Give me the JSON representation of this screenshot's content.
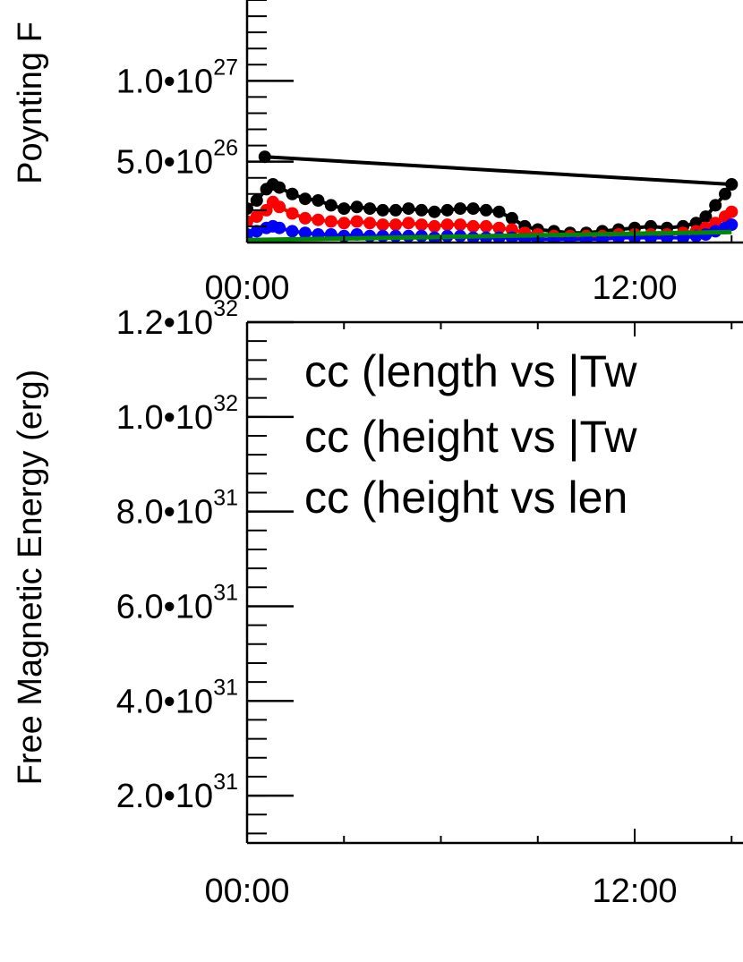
{
  "chart_data": [
    {
      "type": "scatter",
      "ylabel": "Poynting F",
      "x_tick_labels": [
        "00:00",
        "12:00"
      ],
      "y_ticks": [
        {
          "value": 5e+26,
          "mantissa": "5.0",
          "sep": "•",
          "base": "10",
          "exp": "26"
        },
        {
          "value": 1e+27,
          "mantissa": "1.0",
          "sep": "•",
          "base": "10",
          "exp": "27"
        }
      ],
      "xlim_hours": [
        0,
        24
      ],
      "ylim": [
        0,
        1.5e+27
      ],
      "series": [
        {
          "color": "#000000",
          "marker": "circle",
          "points": [
            [
              0.0,
              2.1e+26
            ],
            [
              0.3,
              2.6e+26
            ],
            [
              0.6,
              3.3e+26
            ],
            [
              0.8,
              3.6e+26
            ],
            [
              1.0,
              3.4e+26
            ],
            [
              1.4,
              3e+26
            ],
            [
              1.8,
              2.7e+26
            ],
            [
              2.2,
              2.6e+26
            ],
            [
              2.6,
              2.3e+26
            ],
            [
              3.0,
              2.1e+26
            ],
            [
              3.4,
              2.2e+26
            ],
            [
              3.8,
              2.1e+26
            ],
            [
              4.2,
              2e+26
            ],
            [
              4.6,
              2e+26
            ],
            [
              5.0,
              2.1e+26
            ],
            [
              5.4,
              2e+26
            ],
            [
              5.8,
              1.9e+26
            ],
            [
              6.2,
              2e+26
            ],
            [
              6.6,
              2.1e+26
            ],
            [
              7.0,
              2.1e+26
            ],
            [
              7.4,
              2e+26
            ],
            [
              7.8,
              1.9e+26
            ],
            [
              8.2,
              1.5e+26
            ],
            [
              8.6,
              1e+26
            ],
            [
              9.0,
              8e+25
            ],
            [
              9.5,
              7e+25
            ],
            [
              10.0,
              6e+25
            ],
            [
              10.5,
              6e+25
            ],
            [
              11.0,
              7e+25
            ],
            [
              11.5,
              8e+25
            ],
            [
              12.0,
              9e+25
            ],
            [
              12.5,
              1e+26
            ],
            [
              13.0,
              9e+25
            ],
            [
              13.5,
              1e+26
            ],
            [
              13.9,
              1.2e+26
            ],
            [
              14.2,
              1.6e+26
            ],
            [
              14.5,
              2.3e+26
            ],
            [
              14.8,
              3e+26
            ],
            [
              15.0,
              3.6e+26
            ],
            [
              0.55,
              5.3e+26
            ]
          ]
        },
        {
          "color": "#ff0000",
          "marker": "circle",
          "points": [
            [
              0.0,
              1.3e+26
            ],
            [
              0.3,
              1.6e+26
            ],
            [
              0.6,
              2e+26
            ],
            [
              0.8,
              2.5e+26
            ],
            [
              1.0,
              2.2e+26
            ],
            [
              1.4,
              1.8e+26
            ],
            [
              1.8,
              1.5e+26
            ],
            [
              2.2,
              1.4e+26
            ],
            [
              2.6,
              1.3e+26
            ],
            [
              3.0,
              1.2e+26
            ],
            [
              3.4,
              1.3e+26
            ],
            [
              3.8,
              1.2e+26
            ],
            [
              4.2,
              1.1e+26
            ],
            [
              4.6,
              1.1e+26
            ],
            [
              5.0,
              1.2e+26
            ],
            [
              5.4,
              1.1e+26
            ],
            [
              5.8,
              1e+26
            ],
            [
              6.2,
              1.1e+26
            ],
            [
              6.6,
              1.1e+26
            ],
            [
              7.0,
              1e+26
            ],
            [
              7.4,
              1e+26
            ],
            [
              7.8,
              9e+25
            ],
            [
              8.2,
              8e+25
            ],
            [
              8.6,
              6e+25
            ],
            [
              9.0,
              5e+25
            ],
            [
              9.5,
              4e+25
            ],
            [
              10.0,
              4e+25
            ],
            [
              10.5,
              4e+25
            ],
            [
              11.0,
              4e+25
            ],
            [
              11.5,
              5e+25
            ],
            [
              12.0,
              5e+25
            ],
            [
              12.5,
              5e+25
            ],
            [
              13.0,
              5e+25
            ],
            [
              13.5,
              6e+25
            ],
            [
              13.9,
              7e+25
            ],
            [
              14.2,
              9e+25
            ],
            [
              14.5,
              1.2e+26
            ],
            [
              14.8,
              1.6e+26
            ],
            [
              15.0,
              1.9e+26
            ]
          ]
        },
        {
          "color": "#0000ff",
          "marker": "circle",
          "points": [
            [
              0.0,
              5e+25
            ],
            [
              0.3,
              7e+25
            ],
            [
              0.6,
              9e+25
            ],
            [
              0.8,
              1e+26
            ],
            [
              1.0,
              9e+25
            ],
            [
              1.4,
              7e+25
            ],
            [
              1.8,
              6e+25
            ],
            [
              2.2,
              5e+25
            ],
            [
              2.6,
              5e+25
            ],
            [
              3.0,
              4e+25
            ],
            [
              3.4,
              5e+25
            ],
            [
              3.8,
              4e+25
            ],
            [
              4.2,
              4e+25
            ],
            [
              4.6,
              4e+25
            ],
            [
              5.0,
              4e+25
            ],
            [
              5.4,
              4e+25
            ],
            [
              5.8,
              3e+25
            ],
            [
              6.2,
              4e+25
            ],
            [
              6.6,
              4e+25
            ],
            [
              7.0,
              3e+25
            ],
            [
              7.4,
              3e+25
            ],
            [
              7.8,
              3e+25
            ],
            [
              8.2,
              3e+25
            ],
            [
              8.6,
              2e+25
            ],
            [
              9.0,
              2e+25
            ],
            [
              9.5,
              2e+25
            ],
            [
              10.0,
              2e+25
            ],
            [
              10.5,
              2e+25
            ],
            [
              11.0,
              2e+25
            ],
            [
              11.5,
              3e+25
            ],
            [
              12.0,
              3e+25
            ],
            [
              12.5,
              3e+25
            ],
            [
              13.0,
              3e+25
            ],
            [
              13.5,
              3e+25
            ],
            [
              13.9,
              4e+25
            ],
            [
              14.2,
              5e+25
            ],
            [
              14.5,
              7e+25
            ],
            [
              14.8,
              9e+25
            ],
            [
              15.0,
              1.1e+26
            ]
          ]
        },
        {
          "color": "#008800",
          "marker": "line",
          "points": [
            [
              0.0,
              1.5e+25
            ],
            [
              3.0,
              2.5e+25
            ],
            [
              6.0,
              3.5e+25
            ],
            [
              9.0,
              4.5e+25
            ],
            [
              12.0,
              5.5e+25
            ],
            [
              15.0,
              6.5e+25
            ]
          ]
        }
      ]
    },
    {
      "type": "line",
      "ylabel": "Free Magnetic Energy (erg)",
      "x_tick_labels": [
        "00:00",
        "12:00"
      ],
      "y_ticks": [
        {
          "value": 2e+31,
          "mantissa": "2.0",
          "sep": "•",
          "base": "10",
          "exp": "31"
        },
        {
          "value": 4e+31,
          "mantissa": "4.0",
          "sep": "•",
          "base": "10",
          "exp": "31"
        },
        {
          "value": 6e+31,
          "mantissa": "6.0",
          "sep": "•",
          "base": "10",
          "exp": "31"
        },
        {
          "value": 8e+31,
          "mantissa": "8.0",
          "sep": "•",
          "base": "10",
          "exp": "31"
        },
        {
          "value": 1e+32,
          "mantissa": "1.0",
          "sep": "•",
          "base": "10",
          "exp": "32"
        },
        {
          "value": 1.2e+32,
          "mantissa": "1.2",
          "sep": "•",
          "base": "10",
          "exp": "32"
        }
      ],
      "xlim_hours": [
        0,
        24
      ],
      "ylim": [
        1e+31,
        1.2e+32
      ],
      "legend_placement": "top-left",
      "legend": [
        "cc (length vs |Tw",
        "cc (height vs |Tw",
        "cc (height vs len"
      ]
    }
  ]
}
